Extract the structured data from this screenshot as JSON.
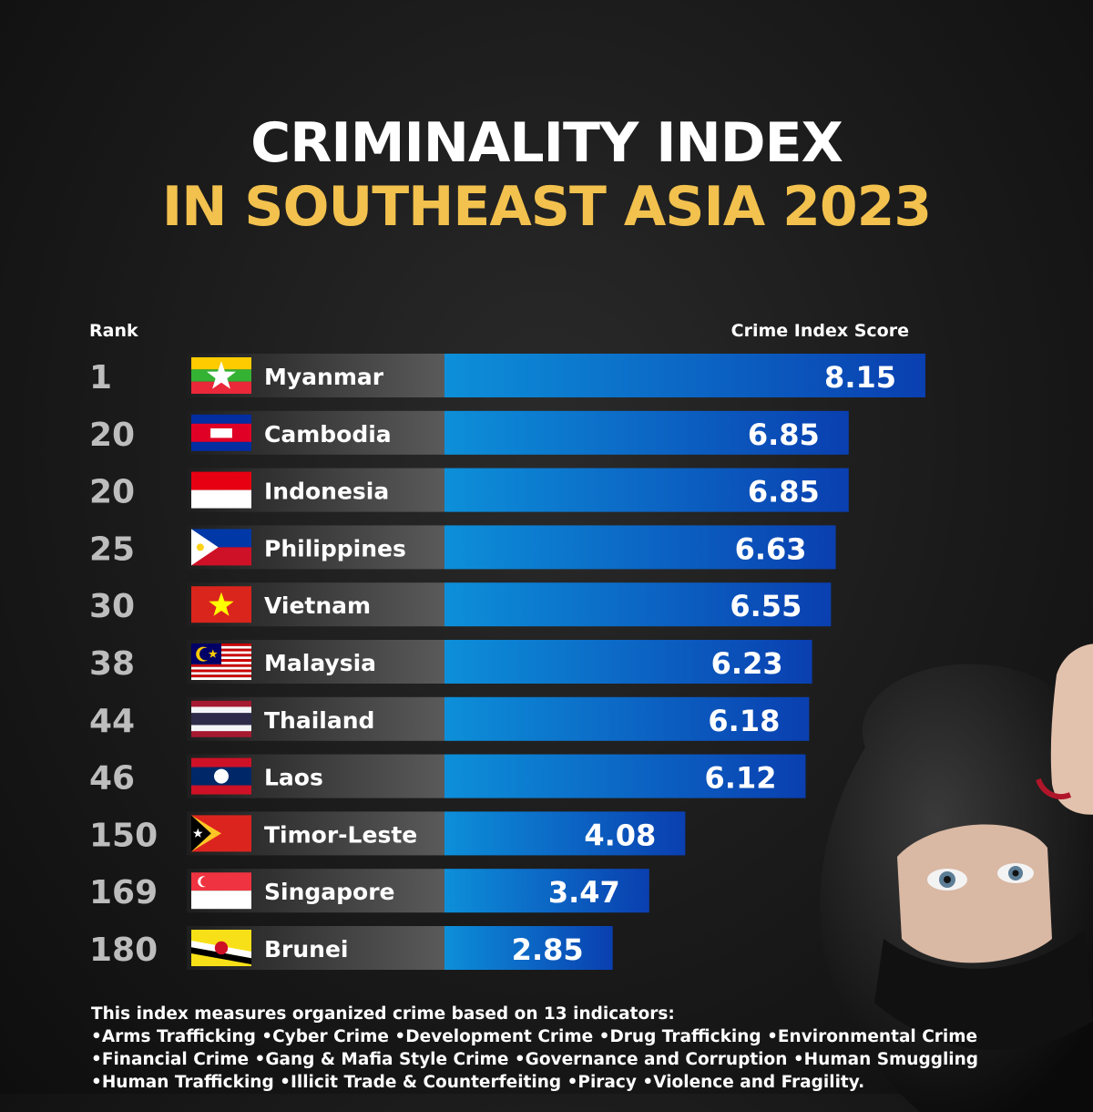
{
  "title_line1": "CRIMINALITY INDEX",
  "title_line2": "IN SOUTHEAST ASIA 2023",
  "rank_header": "Rank",
  "score_header": "Crime Index Score",
  "colors": {
    "title_accent": "#f2c14e",
    "bar_start": "#0d8fd9",
    "bar_end": "#0a3fb0",
    "label_bg": "#3c3c3c",
    "rank_text": "#bdbdbd"
  },
  "chart_data": {
    "type": "bar",
    "orientation": "horizontal",
    "categories": [
      "Myanmar",
      "Cambodia",
      "Indonesia",
      "Philippines",
      "Vietnam",
      "Malaysia",
      "Thailand",
      "Laos",
      "Timor-Leste",
      "Singapore",
      "Brunei"
    ],
    "ranks": [
      "1",
      "20",
      "20",
      "25",
      "30",
      "38",
      "44",
      "46",
      "150",
      "169",
      "180"
    ],
    "values": [
      8.15,
      6.85,
      6.85,
      6.63,
      6.55,
      6.23,
      6.18,
      6.12,
      4.08,
      3.47,
      2.85
    ],
    "flags": [
      "myanmar-flag",
      "cambodia-flag",
      "indonesia-flag",
      "philippines-flag",
      "vietnam-flag",
      "malaysia-flag",
      "thailand-flag",
      "laos-flag",
      "timor-leste-flag",
      "singapore-flag",
      "brunei-flag"
    ],
    "xlabel": "Crime Index Score",
    "ylabel": "Rank"
  },
  "footnote": {
    "intro": "This index measures organized crime based on 13 indicators:",
    "line1": "•Arms Trafficking •Cyber Crime •Development Crime •Drug Trafficking •Environmental Crime",
    "line2": "•Financial Crime •Gang & Mafia Style Crime •Governance and Corruption •Human Smuggling",
    "line3": "•Human Trafficking •Illicit Trade & Counterfeiting •Piracy •Violence and Fragility."
  }
}
